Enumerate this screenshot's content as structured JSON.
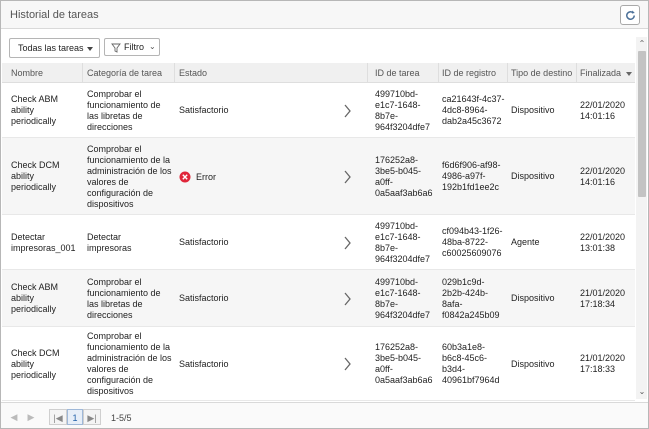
{
  "header": {
    "title": "Historial de tareas",
    "refresh_icon": "refresh-icon"
  },
  "toolbar": {
    "dropdown_value": "Todas las tareas",
    "filter_label": "Filtro"
  },
  "table": {
    "columns": [
      "Nombre",
      "Categoría de tarea",
      "Estado",
      "ID de tarea",
      "ID de registro",
      "Tipo de destino",
      "Finalizada"
    ],
    "rows": [
      {
        "name": [
          "Check ABM",
          "ability",
          "periodically"
        ],
        "category": [
          "Comprobar el",
          "funcionamiento de",
          "las libretas de",
          "direcciones"
        ],
        "state": "Satisfactorio",
        "task_id": [
          "499710bd-",
          "e1c7-1648-",
          "8b7e-",
          "964f3204dfe7"
        ],
        "record_id": [
          "ca21643f-4c37-",
          "4dc8-8964-",
          "dab2a45c3672"
        ],
        "dest": "Dispositivo",
        "date": [
          "22/01/2020",
          "14:01:16"
        ]
      },
      {
        "name": [
          "Check DCM",
          "ability",
          "periodically"
        ],
        "category": [
          "Comprobar el",
          "funcionamiento de la",
          "administración de los",
          "valores de",
          "configuración de",
          "dispositivos"
        ],
        "state": "Error",
        "task_id": [
          "176252a8-",
          "3be5-b045-",
          "a0ff-",
          "0a5aaf3ab6a6"
        ],
        "record_id": [
          "f6d6f906-af98-",
          "4986-a97f-",
          "192b1fd1ee2c"
        ],
        "dest": "Dispositivo",
        "date": [
          "22/01/2020",
          "14:01:16"
        ]
      },
      {
        "name": [
          "Detectar",
          "impresoras_001"
        ],
        "category": [
          "Detectar",
          "impresoras"
        ],
        "state": "Satisfactorio",
        "task_id": [
          "499710bd-",
          "e1c7-1648-",
          "8b7e-",
          "964f3204dfe7"
        ],
        "record_id": [
          "cf094b43-1f26-",
          "48ba-8722-",
          "c60025609076"
        ],
        "dest": "Agente",
        "date": [
          "22/01/2020",
          "13:01:38"
        ]
      },
      {
        "name": [
          "Check ABM",
          "ability",
          "periodically"
        ],
        "category": [
          "Comprobar el",
          "funcionamiento de",
          "las libretas de",
          "direcciones"
        ],
        "state": "Satisfactorio",
        "task_id": [
          "499710bd-",
          "e1c7-1648-",
          "8b7e-",
          "964f3204dfe7"
        ],
        "record_id": [
          "029b1c9d-",
          "2b2b-424b-",
          "8afa-",
          "f0842a245b09"
        ],
        "dest": "Dispositivo",
        "date": [
          "21/01/2020",
          "17:18:34"
        ]
      },
      {
        "name": [
          "Check DCM",
          "ability",
          "periodically"
        ],
        "category": [
          "Comprobar el",
          "funcionamiento de la",
          "administración de los",
          "valores de",
          "configuración de",
          "dispositivos"
        ],
        "state": "Satisfactorio",
        "task_id": [
          "176252a8-",
          "3be5-b045-",
          "a0ff-",
          "0a5aaf3ab6a6"
        ],
        "record_id": [
          "60b3a1e8-",
          "b6c8-45c6-",
          "b3d4-",
          "40961bf7964d"
        ],
        "dest": "Dispositivo",
        "date": [
          "21/01/2020",
          "17:18:33"
        ]
      }
    ]
  },
  "pagination": {
    "current_page": "1",
    "range": "1-5/5"
  },
  "colors": {
    "error": "#e0263a",
    "accent": "#1f5fa8"
  }
}
